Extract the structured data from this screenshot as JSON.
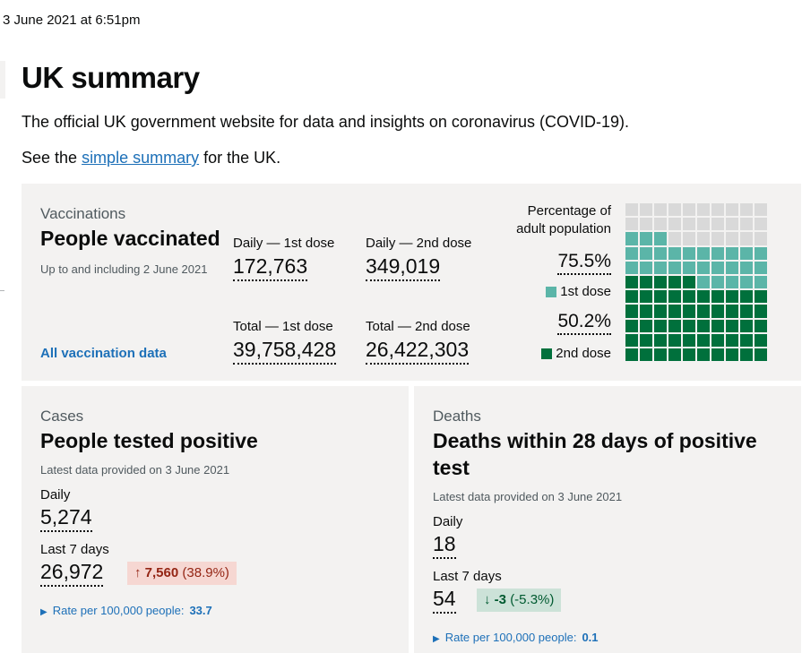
{
  "timestamp": "3 June 2021 at 6:51pm",
  "page": {
    "title": "UK summary",
    "intro": "The official UK government website for data and insights on coronavirus (COVID-19).",
    "see_prefix": "See the ",
    "see_link": "simple summary",
    "see_suffix": " for the UK."
  },
  "vaccinations": {
    "caption": "Vaccinations",
    "heading": "People vaccinated",
    "note": "Up to and including 2 June 2021",
    "daily_1st_label": "Daily — 1st dose",
    "daily_1st_value": "172,763",
    "daily_2nd_label": "Daily — 2nd dose",
    "daily_2nd_value": "349,019",
    "total_1st_label": "Total — 1st dose",
    "total_1st_value": "39,758,428",
    "total_2nd_label": "Total — 2nd dose",
    "total_2nd_value": "26,422,303",
    "link": "All vaccination data",
    "percentage_label_line1": "Percentage of",
    "percentage_label_line2": "adult population",
    "pct_1st": "75.5%",
    "pct_1st_fraction": 0.755,
    "legend_1st": "1st dose",
    "pct_2nd": "50.2%",
    "pct_2nd_fraction": 0.502,
    "legend_2nd": "2nd dose",
    "colors": {
      "first": "#5bb5a8",
      "second": "#00703c",
      "empty": "#d9d9d9"
    }
  },
  "cases": {
    "caption": "Cases",
    "heading": "People tested positive",
    "note": "Latest data provided on 3 June 2021",
    "daily_label": "Daily",
    "daily_value": "5,274",
    "week_label": "Last 7 days",
    "week_value": "26,972",
    "change_arrow": "↑",
    "change_value": "7,560",
    "change_pct": "(38.9%)",
    "rate_label": "Rate per 100,000 people:",
    "rate_value": "33.7"
  },
  "deaths": {
    "caption": "Deaths",
    "heading_line1": "Deaths within 28 days of positive",
    "heading_line2": "test",
    "note": "Latest data provided on 3 June 2021",
    "daily_label": "Daily",
    "daily_value": "18",
    "week_label": "Last 7 days",
    "week_value": "54",
    "change_arrow": "↓",
    "change_value": "-3",
    "change_pct": "(-5.3%)",
    "rate_label": "Rate per 100,000 people:",
    "rate_value": "0.1"
  }
}
